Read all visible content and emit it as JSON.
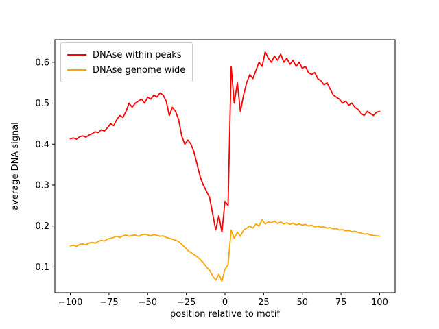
{
  "figure": {
    "background": "#ffffff",
    "axes": {
      "xlabel": "position relative to motif",
      "ylabel": "average DNA signal",
      "x_tick_values": [
        -100,
        -75,
        -50,
        -25,
        0,
        25,
        50,
        75,
        100
      ],
      "x_tick_labels": [
        "−100",
        "−75",
        "−50",
        "−25",
        "0",
        "25",
        "50",
        "75",
        "100"
      ],
      "y_tick_values": [
        0.1,
        0.2,
        0.3,
        0.4,
        0.5,
        0.6
      ],
      "y_tick_labels": [
        "0.1",
        "0.2",
        "0.3",
        "0.4",
        "0.5",
        "0.6"
      ]
    },
    "legend": {
      "items": [
        {
          "label": "DNAse within peaks",
          "color": "#ff0000"
        },
        {
          "label": "DNAse genome wide",
          "color": "#ffa500"
        }
      ]
    }
  },
  "chart_data": {
    "type": "line",
    "title": "",
    "xlabel": "position relative to motif",
    "ylabel": "average DNA signal",
    "xlim": [
      -110,
      110
    ],
    "ylim": [
      0.037,
      0.655
    ],
    "grid": false,
    "legend_position": "upper left",
    "x": [
      -100,
      -98,
      -96,
      -94,
      -92,
      -90,
      -88,
      -86,
      -84,
      -82,
      -80,
      -78,
      -76,
      -74,
      -72,
      -70,
      -68,
      -66,
      -64,
      -62,
      -60,
      -58,
      -56,
      -54,
      -52,
      -50,
      -48,
      -46,
      -44,
      -42,
      -40,
      -38,
      -36,
      -34,
      -32,
      -30,
      -28,
      -26,
      -24,
      -22,
      -20,
      -18,
      -16,
      -14,
      -12,
      -10,
      -8,
      -6,
      -4,
      -2,
      0,
      2,
      4,
      6,
      8,
      10,
      12,
      14,
      16,
      18,
      20,
      22,
      24,
      26,
      28,
      30,
      32,
      34,
      36,
      38,
      40,
      42,
      44,
      46,
      48,
      50,
      52,
      54,
      56,
      58,
      60,
      62,
      64,
      66,
      68,
      70,
      72,
      74,
      76,
      78,
      80,
      82,
      84,
      86,
      88,
      90,
      92,
      94,
      96,
      98,
      100
    ],
    "series": [
      {
        "name": "DNAse within peaks",
        "color": "#ff0000",
        "values": [
          0.413,
          0.415,
          0.412,
          0.418,
          0.42,
          0.417,
          0.422,
          0.425,
          0.43,
          0.428,
          0.435,
          0.432,
          0.44,
          0.45,
          0.445,
          0.46,
          0.47,
          0.465,
          0.48,
          0.5,
          0.49,
          0.5,
          0.505,
          0.51,
          0.5,
          0.515,
          0.51,
          0.52,
          0.515,
          0.525,
          0.52,
          0.505,
          0.47,
          0.49,
          0.48,
          0.46,
          0.42,
          0.4,
          0.41,
          0.4,
          0.38,
          0.35,
          0.32,
          0.3,
          0.285,
          0.27,
          0.23,
          0.19,
          0.225,
          0.185,
          0.26,
          0.25,
          0.59,
          0.5,
          0.55,
          0.48,
          0.52,
          0.55,
          0.57,
          0.56,
          0.58,
          0.6,
          0.59,
          0.625,
          0.61,
          0.6,
          0.615,
          0.605,
          0.62,
          0.6,
          0.61,
          0.595,
          0.605,
          0.59,
          0.6,
          0.585,
          0.59,
          0.575,
          0.57,
          0.575,
          0.56,
          0.555,
          0.545,
          0.55,
          0.535,
          0.52,
          0.515,
          0.51,
          0.5,
          0.505,
          0.495,
          0.5,
          0.49,
          0.485,
          0.475,
          0.47,
          0.48,
          0.475,
          0.47,
          0.478,
          0.48
        ]
      },
      {
        "name": "DNAse genome wide",
        "color": "#ffa500",
        "values": [
          0.151,
          0.153,
          0.15,
          0.155,
          0.156,
          0.154,
          0.158,
          0.16,
          0.158,
          0.162,
          0.165,
          0.163,
          0.168,
          0.17,
          0.172,
          0.175,
          0.172,
          0.176,
          0.178,
          0.175,
          0.177,
          0.178,
          0.175,
          0.178,
          0.18,
          0.178,
          0.176,
          0.179,
          0.177,
          0.175,
          0.176,
          0.172,
          0.17,
          0.168,
          0.165,
          0.162,
          0.155,
          0.148,
          0.14,
          0.135,
          0.13,
          0.125,
          0.118,
          0.11,
          0.1,
          0.092,
          0.078,
          0.068,
          0.082,
          0.065,
          0.095,
          0.105,
          0.19,
          0.17,
          0.185,
          0.175,
          0.19,
          0.195,
          0.2,
          0.195,
          0.205,
          0.2,
          0.215,
          0.205,
          0.21,
          0.208,
          0.212,
          0.206,
          0.21,
          0.205,
          0.208,
          0.204,
          0.207,
          0.203,
          0.205,
          0.202,
          0.204,
          0.2,
          0.202,
          0.198,
          0.2,
          0.197,
          0.198,
          0.195,
          0.196,
          0.193,
          0.194,
          0.19,
          0.191,
          0.188,
          0.189,
          0.186,
          0.187,
          0.184,
          0.183,
          0.18,
          0.181,
          0.178,
          0.177,
          0.176,
          0.175
        ]
      }
    ]
  }
}
